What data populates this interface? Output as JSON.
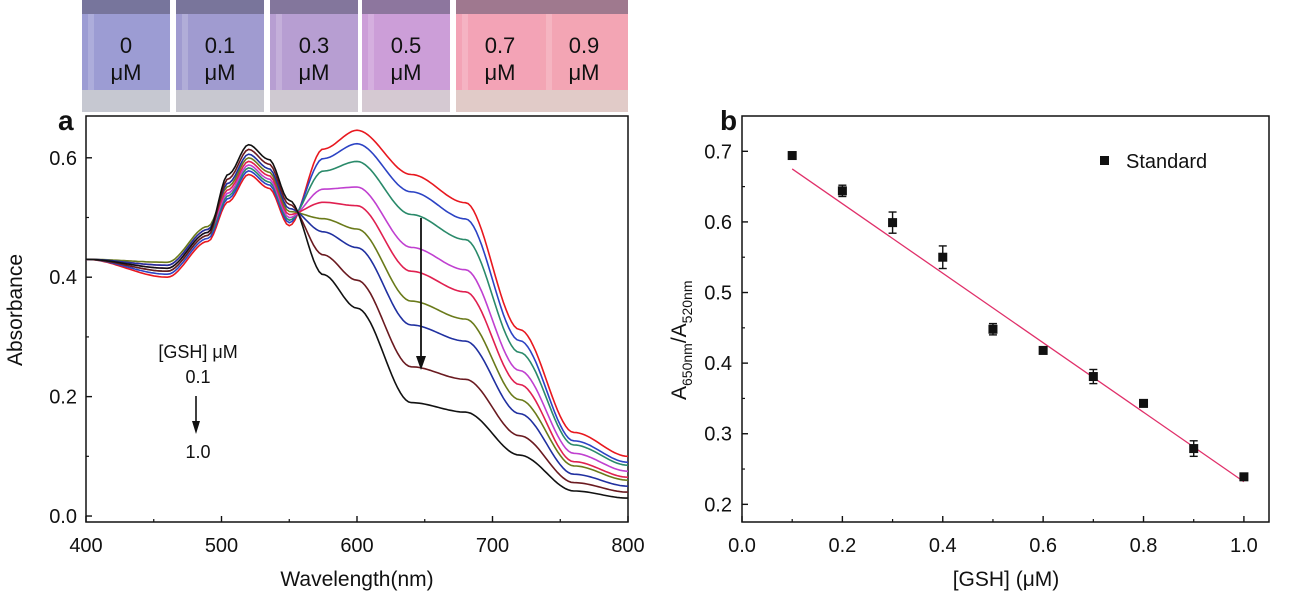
{
  "vials": [
    {
      "value": "0",
      "unit": "μM",
      "color": "#9c9cd3"
    },
    {
      "value": "0.1",
      "unit": "μM",
      "color": "#a09bd0"
    },
    {
      "value": "0.3",
      "unit": "μM",
      "color": "#b79ed2"
    },
    {
      "value": "0.5",
      "unit": "μM",
      "color": "#cc9ed8"
    },
    {
      "value": "0.7",
      "unit": "μM",
      "color": "#f3a3b6"
    },
    {
      "value": "0.9",
      "unit": "μM",
      "color": "#f3a5b4"
    }
  ],
  "chart_data": [
    {
      "panel": "a",
      "type": "line",
      "xlabel": "Wavelength(nm)",
      "ylabel": "Absorbance",
      "xlim": [
        400,
        800
      ],
      "ylim": [
        -0.01,
        0.67
      ],
      "xticks": [
        400,
        500,
        600,
        700,
        800
      ],
      "yticks": [
        "0.0",
        "0.2",
        "0.4",
        "0.6"
      ],
      "annotation": {
        "title": "[GSH] μM",
        "from": "0.1",
        "to": "1.0"
      },
      "series": [
        {
          "color": "#e8181f",
          "peak": 0.572,
          "shoulder": 0.572,
          "tail": 0.1,
          "base": 0.41
        },
        {
          "color": "#2c43c4",
          "peak": 0.578,
          "shoulder": 0.543,
          "tail": 0.09,
          "base": 0.415
        },
        {
          "color": "#2a8a6a",
          "peak": 0.583,
          "shoulder": 0.505,
          "tail": 0.085,
          "base": 0.42
        },
        {
          "color": "#c040d0",
          "peak": 0.588,
          "shoulder": 0.45,
          "tail": 0.075,
          "base": 0.425
        },
        {
          "color": "#e02050",
          "peak": 0.594,
          "shoulder": 0.41,
          "tail": 0.065,
          "base": 0.43
        },
        {
          "color": "#6a7a1a",
          "peak": 0.6,
          "shoulder": 0.36,
          "tail": 0.06,
          "base": 0.435
        },
        {
          "color": "#2030a0",
          "peak": 0.606,
          "shoulder": 0.32,
          "tail": 0.05,
          "base": 0.43
        },
        {
          "color": "#6a1a20",
          "peak": 0.614,
          "shoulder": 0.25,
          "tail": 0.04,
          "base": 0.42
        },
        {
          "color": "#111111",
          "peak": 0.622,
          "shoulder": 0.19,
          "tail": 0.03,
          "base": 0.425
        }
      ]
    },
    {
      "panel": "b",
      "type": "scatter",
      "xlabel": "[GSH] (μM)",
      "ylabel": "A650nm/A520nm",
      "xlim": [
        0.0,
        1.05
      ],
      "ylim": [
        0.175,
        0.75
      ],
      "xticks": [
        "0.0",
        "0.2",
        "0.4",
        "0.6",
        "0.8",
        "1.0"
      ],
      "yticks": [
        "0.2",
        "0.3",
        "0.4",
        "0.5",
        "0.6",
        "0.7"
      ],
      "legend": "Standard",
      "legend_position": "top-right",
      "points": [
        {
          "x": 0.1,
          "y": 0.694,
          "err": 0.005
        },
        {
          "x": 0.2,
          "y": 0.644,
          "err": 0.008
        },
        {
          "x": 0.3,
          "y": 0.599,
          "err": 0.015
        },
        {
          "x": 0.4,
          "y": 0.55,
          "err": 0.016
        },
        {
          "x": 0.5,
          "y": 0.448,
          "err": 0.008
        },
        {
          "x": 0.6,
          "y": 0.418,
          "err": 0.005
        },
        {
          "x": 0.7,
          "y": 0.381,
          "err": 0.01
        },
        {
          "x": 0.8,
          "y": 0.343,
          "err": 0.005
        },
        {
          "x": 0.9,
          "y": 0.279,
          "err": 0.011
        },
        {
          "x": 1.0,
          "y": 0.239,
          "err": 0.005
        }
      ],
      "fit": {
        "x": [
          0.1,
          1.0
        ],
        "y": [
          0.675,
          0.232
        ],
        "color": "#e0306a"
      }
    }
  ]
}
